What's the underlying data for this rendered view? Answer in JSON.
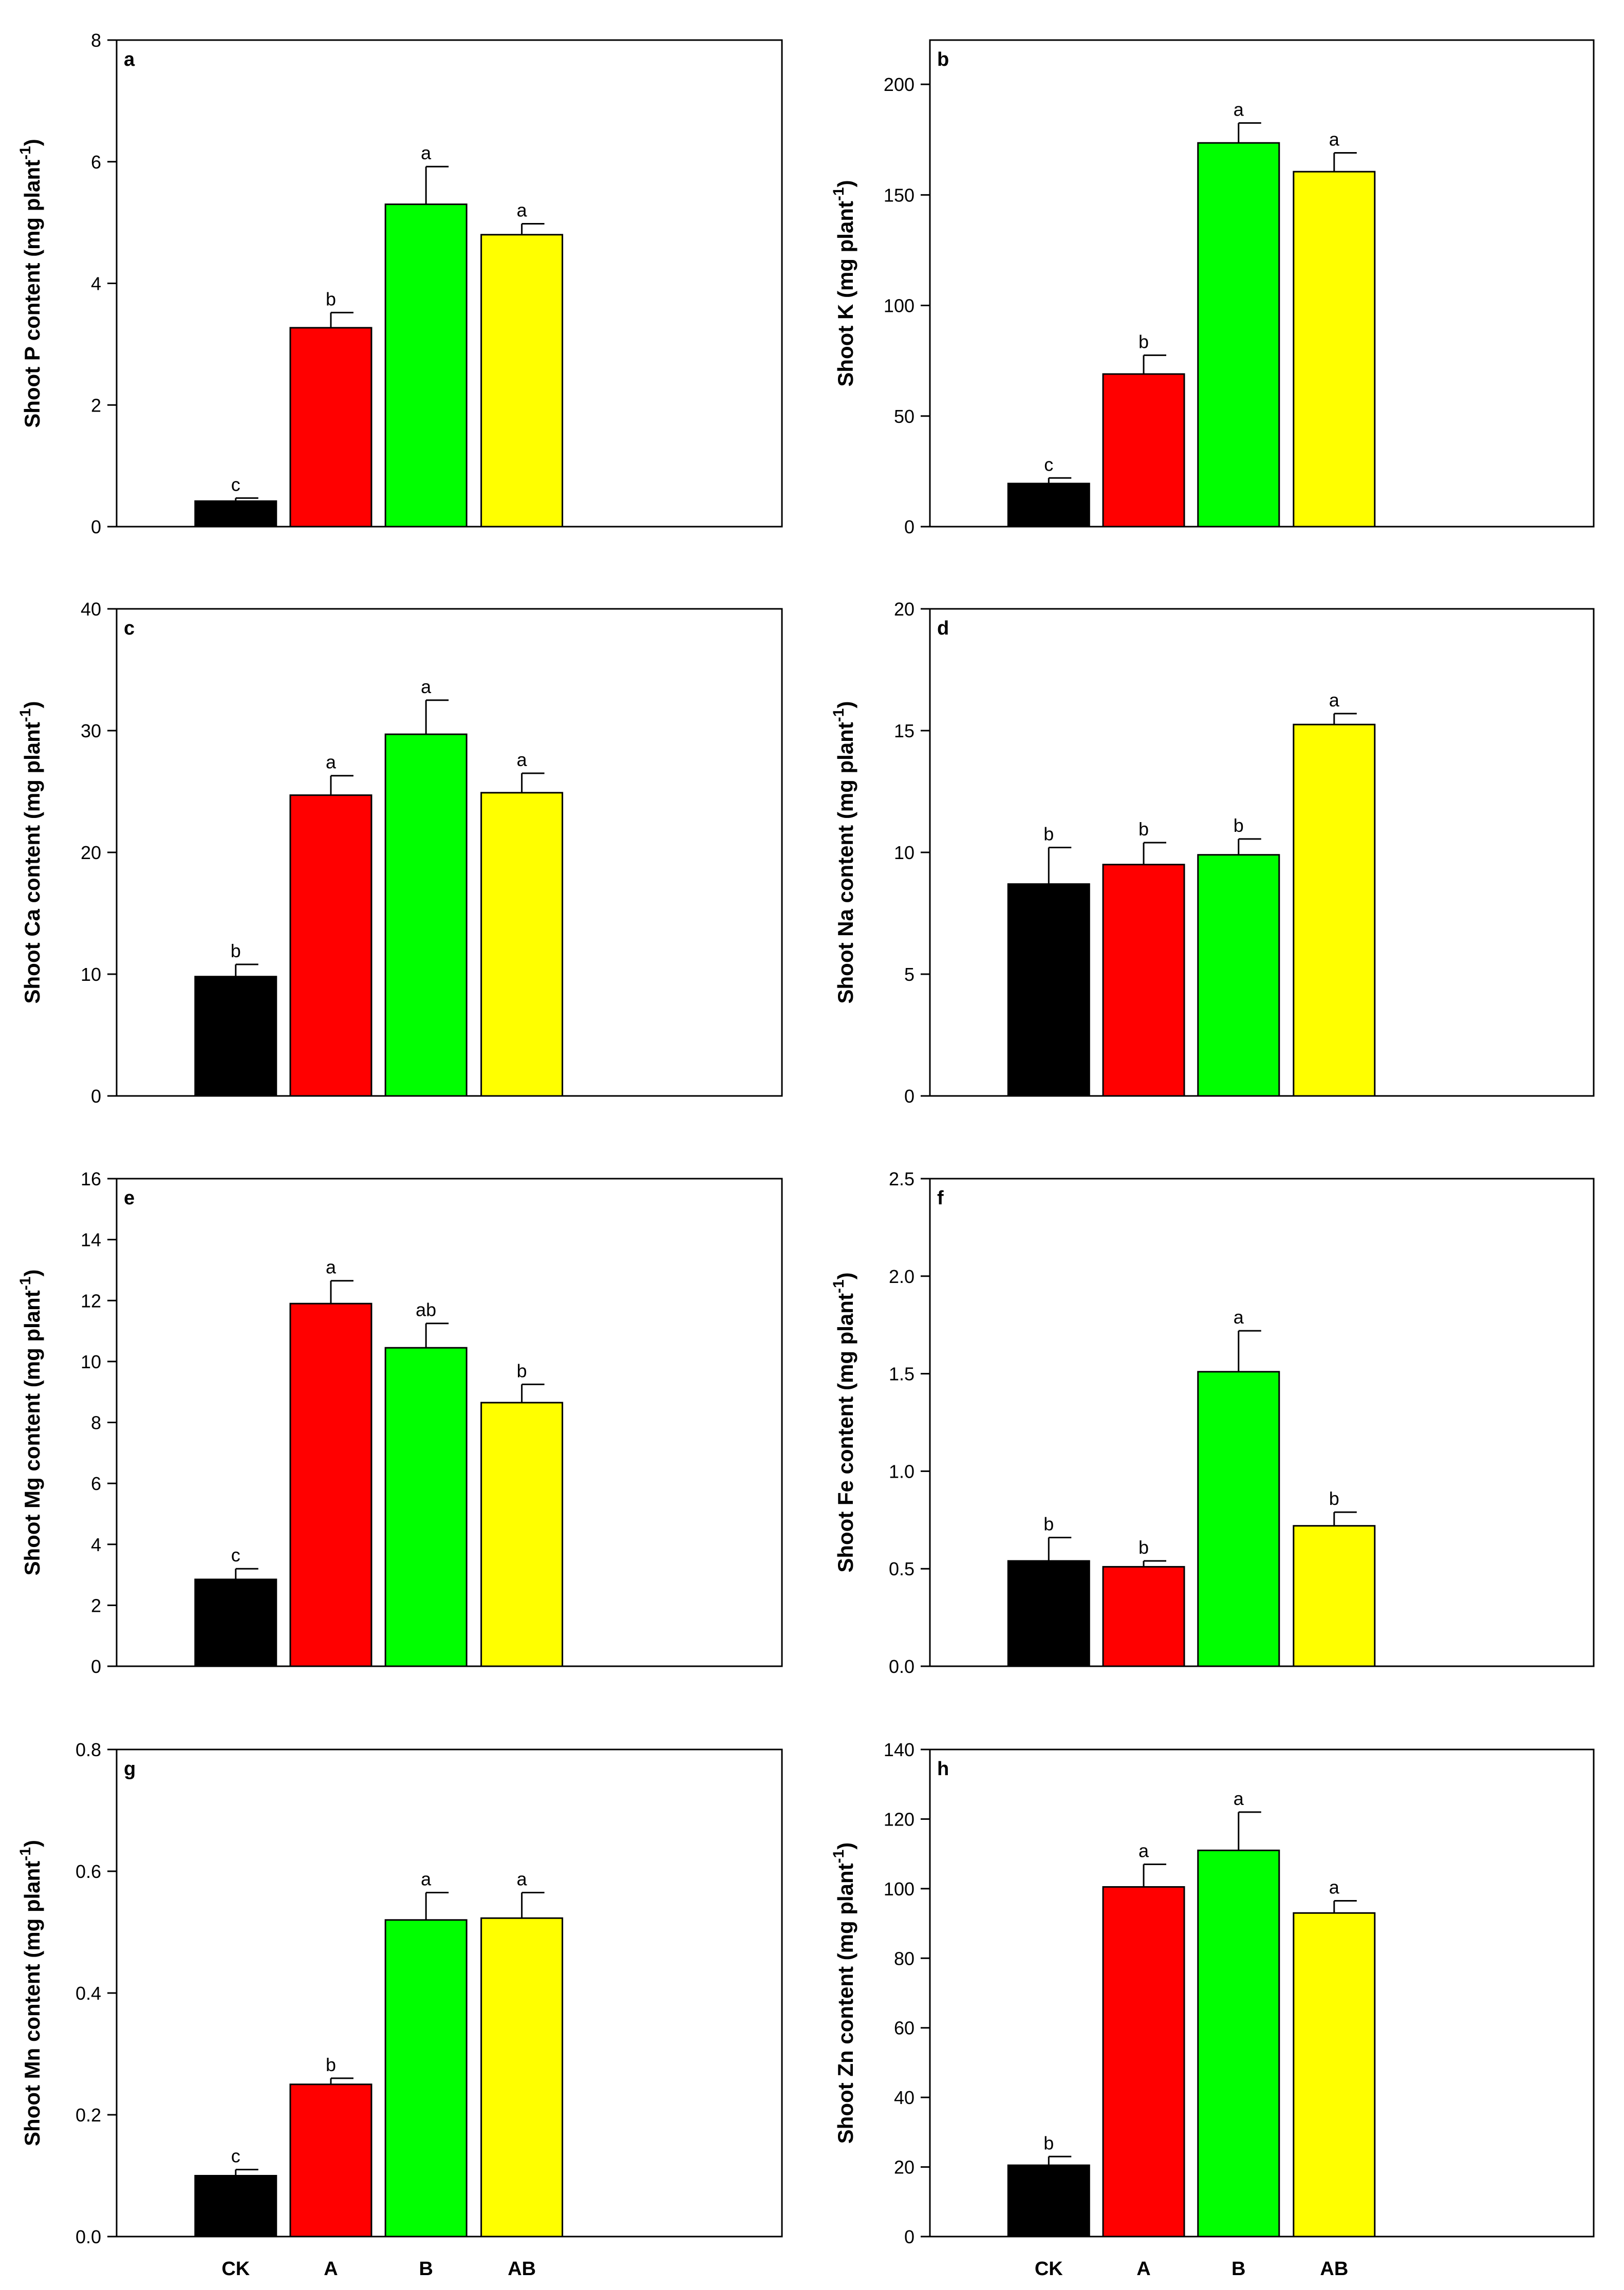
{
  "chart_data": [
    {
      "type": "bar",
      "panel_label": "a",
      "categories": [
        "CK",
        "A",
        "B",
        "AB"
      ],
      "values": [
        0.42,
        3.27,
        5.3,
        4.8
      ],
      "errors": [
        0.05,
        0.25,
        0.62,
        0.18
      ],
      "letters": [
        "c",
        "b",
        "a",
        "a"
      ],
      "ylabel_main": "Shoot P content (mg plant",
      "ylabel_sup": "-1",
      "ylabel_close": ")",
      "ylim": [
        0,
        8
      ],
      "yticks": [
        0,
        2,
        4,
        6,
        8
      ],
      "ytick_labels": [
        "0",
        "2",
        "4",
        "6",
        "8"
      ],
      "show_x_labels": false
    },
    {
      "type": "bar",
      "panel_label": "b",
      "categories": [
        "CK",
        "A",
        "B",
        "AB"
      ],
      "values": [
        19.5,
        69,
        173.5,
        160.5
      ],
      "errors": [
        2.5,
        8.5,
        9,
        8.5
      ],
      "letters": [
        "c",
        "b",
        "a",
        "a"
      ],
      "ylabel_main": "Shoot K (mg plant",
      "ylabel_sup": "-1",
      "ylabel_close": ")",
      "ylim": [
        0,
        220
      ],
      "yticks": [
        0,
        50,
        100,
        150,
        200
      ],
      "ytick_labels": [
        "0",
        "50",
        "100",
        "150",
        "200"
      ],
      "show_x_labels": false
    },
    {
      "type": "bar",
      "panel_label": "c",
      "categories": [
        "CK",
        "A",
        "B",
        "AB"
      ],
      "values": [
        9.8,
        24.7,
        29.7,
        24.9
      ],
      "errors": [
        1.0,
        1.6,
        2.8,
        1.6
      ],
      "letters": [
        "b",
        "a",
        "a",
        "a"
      ],
      "ylabel_main": "Shoot Ca content (mg plant",
      "ylabel_sup": "-1",
      "ylabel_close": ")",
      "ylim": [
        0,
        40
      ],
      "yticks": [
        0,
        10,
        20,
        30,
        40
      ],
      "ytick_labels": [
        "0",
        "10",
        "20",
        "30",
        "40"
      ],
      "show_x_labels": false
    },
    {
      "type": "bar",
      "panel_label": "d",
      "categories": [
        "CK",
        "A",
        "B",
        "AB"
      ],
      "values": [
        8.7,
        9.5,
        9.9,
        15.25
      ],
      "errors": [
        1.5,
        0.9,
        0.65,
        0.45
      ],
      "letters": [
        "b",
        "b",
        "b",
        "a"
      ],
      "ylabel_main": "Shoot Na content (mg plant",
      "ylabel_sup": "-1",
      "ylabel_close": ")",
      "ylim": [
        0,
        20
      ],
      "yticks": [
        0,
        5,
        10,
        15,
        20
      ],
      "ytick_labels": [
        "0",
        "5",
        "10",
        "15",
        "20"
      ],
      "show_x_labels": false
    },
    {
      "type": "bar",
      "panel_label": "e",
      "categories": [
        "CK",
        "A",
        "B",
        "AB"
      ],
      "values": [
        2.85,
        11.9,
        10.45,
        8.65
      ],
      "errors": [
        0.35,
        0.75,
        0.8,
        0.6
      ],
      "letters": [
        "c",
        "a",
        "ab",
        "b"
      ],
      "ylabel_main": "Shoot Mg content (mg plant",
      "ylabel_sup": "-1",
      "ylabel_close": ")",
      "ylim": [
        0,
        16
      ],
      "yticks": [
        0,
        2,
        4,
        6,
        8,
        10,
        12,
        14,
        16
      ],
      "ytick_labels": [
        "0",
        "2",
        "4",
        "6",
        "8",
        "10",
        "12",
        "14",
        "16"
      ],
      "show_x_labels": false
    },
    {
      "type": "bar",
      "panel_label": "f",
      "categories": [
        "CK",
        "A",
        "B",
        "AB"
      ],
      "values": [
        0.54,
        0.51,
        1.51,
        0.72
      ],
      "errors": [
        0.12,
        0.03,
        0.21,
        0.07
      ],
      "letters": [
        "b",
        "b",
        "a",
        "b"
      ],
      "ylabel_main": "Shoot Fe content (mg plant",
      "ylabel_sup": "-1",
      "ylabel_close": ")",
      "ylim": [
        0,
        2.5
      ],
      "yticks": [
        0,
        0.5,
        1.0,
        1.5,
        2.0,
        2.5
      ],
      "ytick_labels": [
        "0.0",
        "0.5",
        "1.0",
        "1.5",
        "2.0",
        "2.5"
      ],
      "show_x_labels": false
    },
    {
      "type": "bar",
      "panel_label": "g",
      "categories": [
        "CK",
        "A",
        "B",
        "AB"
      ],
      "values": [
        0.1,
        0.25,
        0.52,
        0.523
      ],
      "errors": [
        0.01,
        0.01,
        0.045,
        0.042
      ],
      "letters": [
        "c",
        "b",
        "a",
        "a"
      ],
      "ylabel_main": "Shoot Mn content (mg plant",
      "ylabel_sup": "-1",
      "ylabel_close": ")",
      "ylim": [
        0,
        0.8
      ],
      "yticks": [
        0,
        0.2,
        0.4,
        0.6,
        0.8
      ],
      "ytick_labels": [
        "0.0",
        "0.2",
        "0.4",
        "0.6",
        "0.8"
      ],
      "show_x_labels": true
    },
    {
      "type": "bar",
      "panel_label": "h",
      "categories": [
        "CK",
        "A",
        "B",
        "AB"
      ],
      "values": [
        20.5,
        100.5,
        111,
        93
      ],
      "errors": [
        2.5,
        6.5,
        11,
        3.5
      ],
      "letters": [
        "b",
        "a",
        "a",
        "a"
      ],
      "ylabel_main": "Shoot Zn content (mg plant",
      "ylabel_sup": "-1",
      "ylabel_close": ")",
      "ylim": [
        0,
        140
      ],
      "yticks": [
        0,
        20,
        40,
        60,
        80,
        100,
        120,
        140
      ],
      "ytick_labels": [
        "0",
        "20",
        "40",
        "60",
        "80",
        "100",
        "120",
        "140"
      ],
      "show_x_labels": true
    }
  ],
  "bar_colors": [
    "#000000",
    "#ff0000",
    "#00ff00",
    "#ffff00"
  ]
}
